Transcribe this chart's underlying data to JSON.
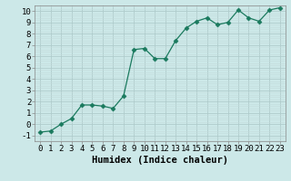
{
  "x": [
    0,
    1,
    2,
    3,
    4,
    5,
    6,
    7,
    8,
    9,
    10,
    11,
    12,
    13,
    14,
    15,
    16,
    17,
    18,
    19,
    20,
    21,
    22,
    23
  ],
  "y": [
    -0.7,
    -0.6,
    0.0,
    0.5,
    1.7,
    1.7,
    1.6,
    1.4,
    2.5,
    6.6,
    6.7,
    5.8,
    5.8,
    7.4,
    8.5,
    9.1,
    9.4,
    8.8,
    9.0,
    10.1,
    9.4,
    9.1,
    10.1,
    10.3
  ],
  "line_color": "#1a7a5e",
  "marker": "D",
  "marker_size": 2.5,
  "bg_color": "#cce8e8",
  "grid_major_color": "#b0cccc",
  "grid_minor_color": "#c4dcdc",
  "xlabel": "Humidex (Indice chaleur)",
  "xlim": [
    -0.5,
    23.5
  ],
  "ylim": [
    -1.5,
    10.5
  ],
  "xticks": [
    0,
    1,
    2,
    3,
    4,
    5,
    6,
    7,
    8,
    9,
    10,
    11,
    12,
    13,
    14,
    15,
    16,
    17,
    18,
    19,
    20,
    21,
    22,
    23
  ],
  "yticks": [
    -1,
    0,
    1,
    2,
    3,
    4,
    5,
    6,
    7,
    8,
    9,
    10
  ],
  "xlabel_fontsize": 7.5,
  "tick_fontsize": 6.5
}
